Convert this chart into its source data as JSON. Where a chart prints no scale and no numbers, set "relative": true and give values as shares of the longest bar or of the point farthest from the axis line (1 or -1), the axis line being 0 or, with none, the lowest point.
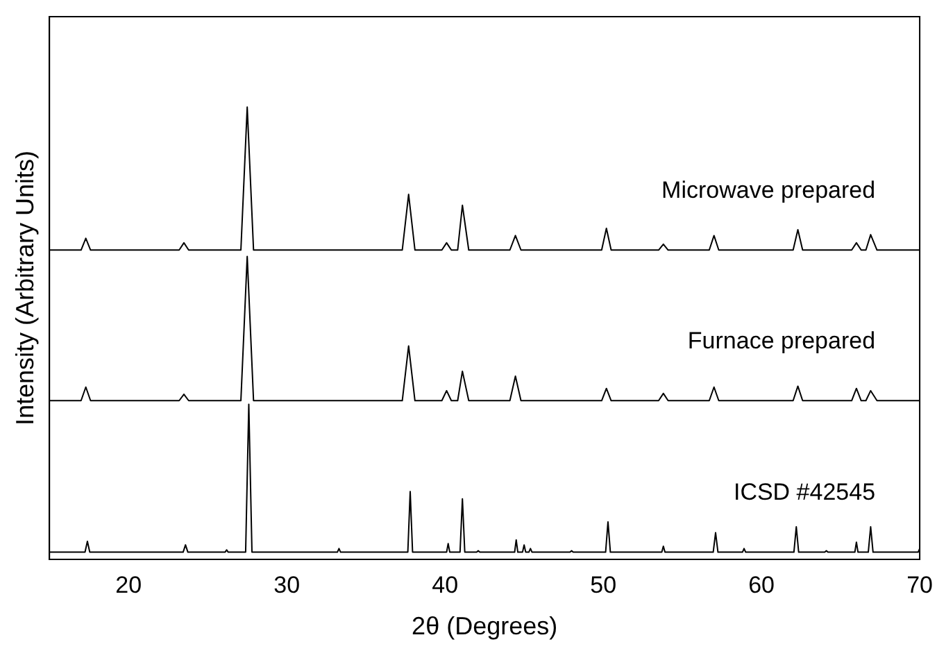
{
  "chart_data": {
    "type": "line",
    "xlabel": "2θ (Degrees)",
    "ylabel": "Intensity (Arbitrary Units)",
    "relative": true,
    "xlim": [
      15,
      70
    ],
    "xticks": [
      20,
      30,
      40,
      50,
      60,
      70
    ],
    "grid": false,
    "legend": false,
    "marker": "none",
    "line_style": "solid",
    "series": [
      {
        "name": "Microwave prepared",
        "color": "#000000",
        "x": [
          15,
          17.0,
          17.3,
          17.6,
          23.2,
          23.5,
          23.8,
          27.1,
          27.5,
          27.9,
          37.3,
          37.7,
          38.1,
          39.8,
          40.1,
          40.4,
          40.8,
          41.1,
          41.5,
          44.1,
          44.45,
          44.8,
          49.9,
          50.2,
          50.5,
          53.5,
          53.8,
          54.1,
          56.7,
          57.0,
          57.3,
          62.0,
          62.3,
          62.6,
          65.7,
          66.0,
          66.3,
          66.6,
          66.9,
          67.3,
          70
        ],
        "values": [
          0.684,
          0.684,
          0.71,
          0.684,
          0.684,
          0.7,
          0.684,
          0.684,
          1.0,
          0.684,
          0.684,
          0.807,
          0.684,
          0.684,
          0.7,
          0.684,
          0.684,
          0.783,
          0.684,
          0.684,
          0.716,
          0.684,
          0.684,
          0.732,
          0.684,
          0.684,
          0.697,
          0.684,
          0.684,
          0.716,
          0.684,
          0.684,
          0.729,
          0.684,
          0.684,
          0.7,
          0.684,
          0.684,
          0.718,
          0.684,
          0.684
        ]
      },
      {
        "name": "Furnace prepared",
        "color": "#000000",
        "x": [
          15,
          17.0,
          17.3,
          17.6,
          23.2,
          23.5,
          23.8,
          27.1,
          27.5,
          27.9,
          37.3,
          37.7,
          38.1,
          39.8,
          40.1,
          40.4,
          40.8,
          41.1,
          41.5,
          44.1,
          44.45,
          44.8,
          49.9,
          50.2,
          50.5,
          53.5,
          53.8,
          54.1,
          56.7,
          57.0,
          57.3,
          62.0,
          62.3,
          62.6,
          65.7,
          66.0,
          66.3,
          66.6,
          66.9,
          67.3,
          70
        ],
        "values": [
          0.351,
          0.351,
          0.381,
          0.351,
          0.351,
          0.365,
          0.351,
          0.351,
          0.67,
          0.351,
          0.351,
          0.472,
          0.351,
          0.351,
          0.373,
          0.351,
          0.351,
          0.416,
          0.351,
          0.351,
          0.405,
          0.351,
          0.351,
          0.378,
          0.351,
          0.351,
          0.367,
          0.351,
          0.351,
          0.381,
          0.351,
          0.351,
          0.383,
          0.351,
          0.351,
          0.378,
          0.351,
          0.351,
          0.373,
          0.351,
          0.351
        ]
      },
      {
        "name": "ICSD #42545",
        "color": "#000000",
        "x": [
          15,
          17.25,
          17.4,
          17.55,
          23.45,
          23.6,
          23.75,
          26.1,
          26.2,
          26.3,
          27.4,
          27.6,
          27.8,
          33.2,
          33.3,
          33.4,
          37.65,
          37.8,
          37.95,
          40.1,
          40.2,
          40.3,
          40.95,
          41.1,
          41.25,
          42.0,
          42.1,
          42.2,
          44.4,
          44.5,
          44.6,
          44.9,
          45.0,
          45.1,
          45.3,
          45.4,
          45.5,
          47.9,
          48.0,
          48.1,
          50.15,
          50.3,
          50.45,
          53.7,
          53.8,
          53.9,
          56.95,
          57.1,
          57.25,
          58.8,
          58.9,
          59.0,
          62.05,
          62.2,
          62.35,
          64.0,
          64.1,
          64.2,
          65.9,
          66.0,
          66.1,
          66.75,
          66.9,
          67.05,
          69.9,
          70
        ],
        "values": [
          0.016,
          0.016,
          0.04,
          0.016,
          0.016,
          0.032,
          0.016,
          0.016,
          0.021,
          0.016,
          0.016,
          0.343,
          0.016,
          0.016,
          0.024,
          0.016,
          0.016,
          0.15,
          0.016,
          0.016,
          0.035,
          0.016,
          0.016,
          0.134,
          0.016,
          0.016,
          0.019,
          0.016,
          0.016,
          0.043,
          0.016,
          0.016,
          0.032,
          0.016,
          0.016,
          0.024,
          0.016,
          0.016,
          0.019,
          0.016,
          0.016,
          0.083,
          0.016,
          0.016,
          0.029,
          0.016,
          0.016,
          0.059,
          0.016,
          0.016,
          0.024,
          0.016,
          0.016,
          0.072,
          0.016,
          0.016,
          0.019,
          0.016,
          0.016,
          0.038,
          0.016,
          0.016,
          0.072,
          0.016,
          0.016,
          0.024
        ]
      }
    ]
  }
}
